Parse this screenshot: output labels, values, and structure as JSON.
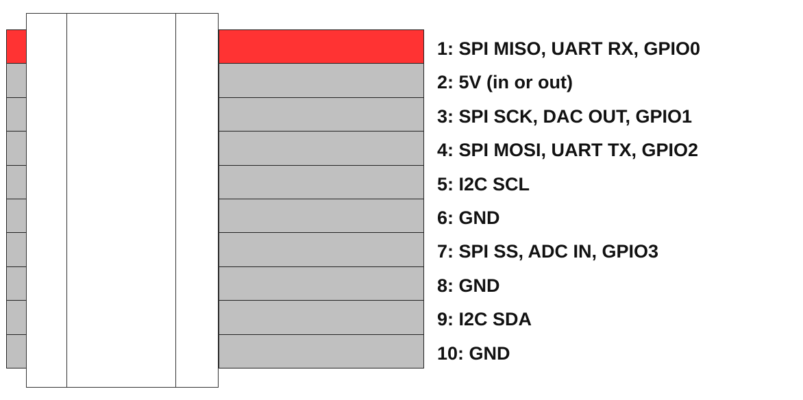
{
  "colors": {
    "pin1": "#ff3333",
    "pin_other": "#c0c0c0",
    "outline": "#222222"
  },
  "pins": [
    {
      "label": "1: SPI MISO, UART RX, GPIO0",
      "highlighted": true
    },
    {
      "label": "2: 5V (in or out)",
      "highlighted": false
    },
    {
      "label": "3: SPI SCK, DAC OUT, GPIO1",
      "highlighted": false
    },
    {
      "label": "4: SPI MOSI, UART TX, GPIO2",
      "highlighted": false
    },
    {
      "label": "5: I2C SCL",
      "highlighted": false
    },
    {
      "label": "6: GND",
      "highlighted": false
    },
    {
      "label": "7: SPI SS, ADC IN, GPIO3",
      "highlighted": false
    },
    {
      "label": "8: GND",
      "highlighted": false
    },
    {
      "label": "9: I2C SDA",
      "highlighted": false
    },
    {
      "label": "10: GND",
      "highlighted": false
    }
  ]
}
